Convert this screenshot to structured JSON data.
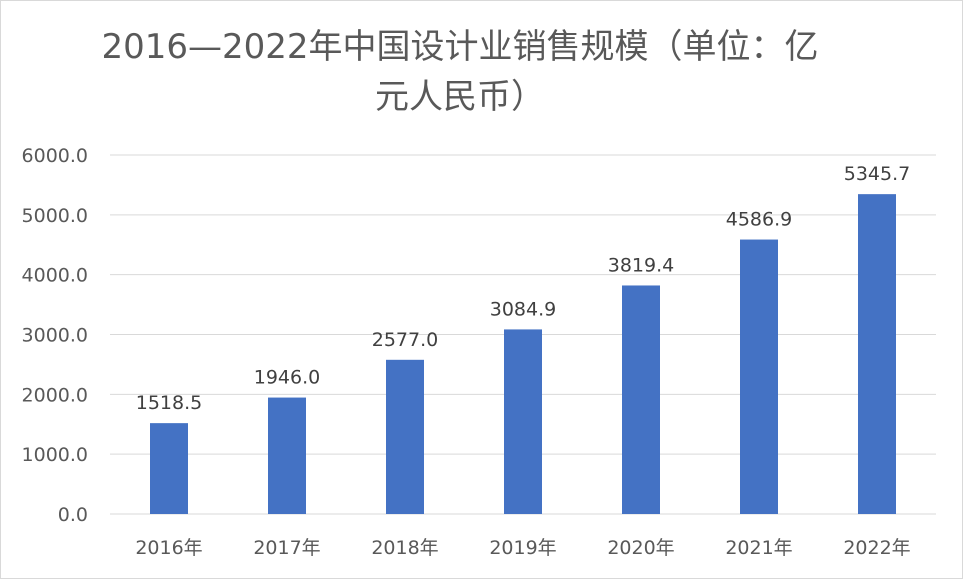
{
  "chart_data": {
    "type": "bar",
    "title": "2016—2022年中国设计业销售规模（单位：亿元人民币）",
    "title_lines": [
      "2016—2022年中国设计业销售规模（单位：亿",
      "元人民币）"
    ],
    "categories": [
      "2016年",
      "2017年",
      "2018年",
      "2019年",
      "2020年",
      "2021年",
      "2022年"
    ],
    "values": [
      1518.5,
      1946.0,
      2577.0,
      3084.9,
      3819.4,
      4586.9,
      5345.7
    ],
    "value_labels": [
      "1518.5",
      "1946.0",
      "2577.0",
      "3084.9",
      "3819.4",
      "4586.9",
      "5345.7"
    ],
    "ylim": [
      0,
      6000
    ],
    "yticks": [
      0,
      1000,
      2000,
      3000,
      4000,
      5000,
      6000
    ],
    "ytick_labels": [
      "0.0",
      "1000.0",
      "2000.0",
      "3000.0",
      "4000.0",
      "5000.0",
      "6000.0"
    ],
    "xlabel": "",
    "ylabel": "",
    "grid": true,
    "legend": "none",
    "bar_color": "#4472C4",
    "grid_color": "#d9d9d9"
  }
}
